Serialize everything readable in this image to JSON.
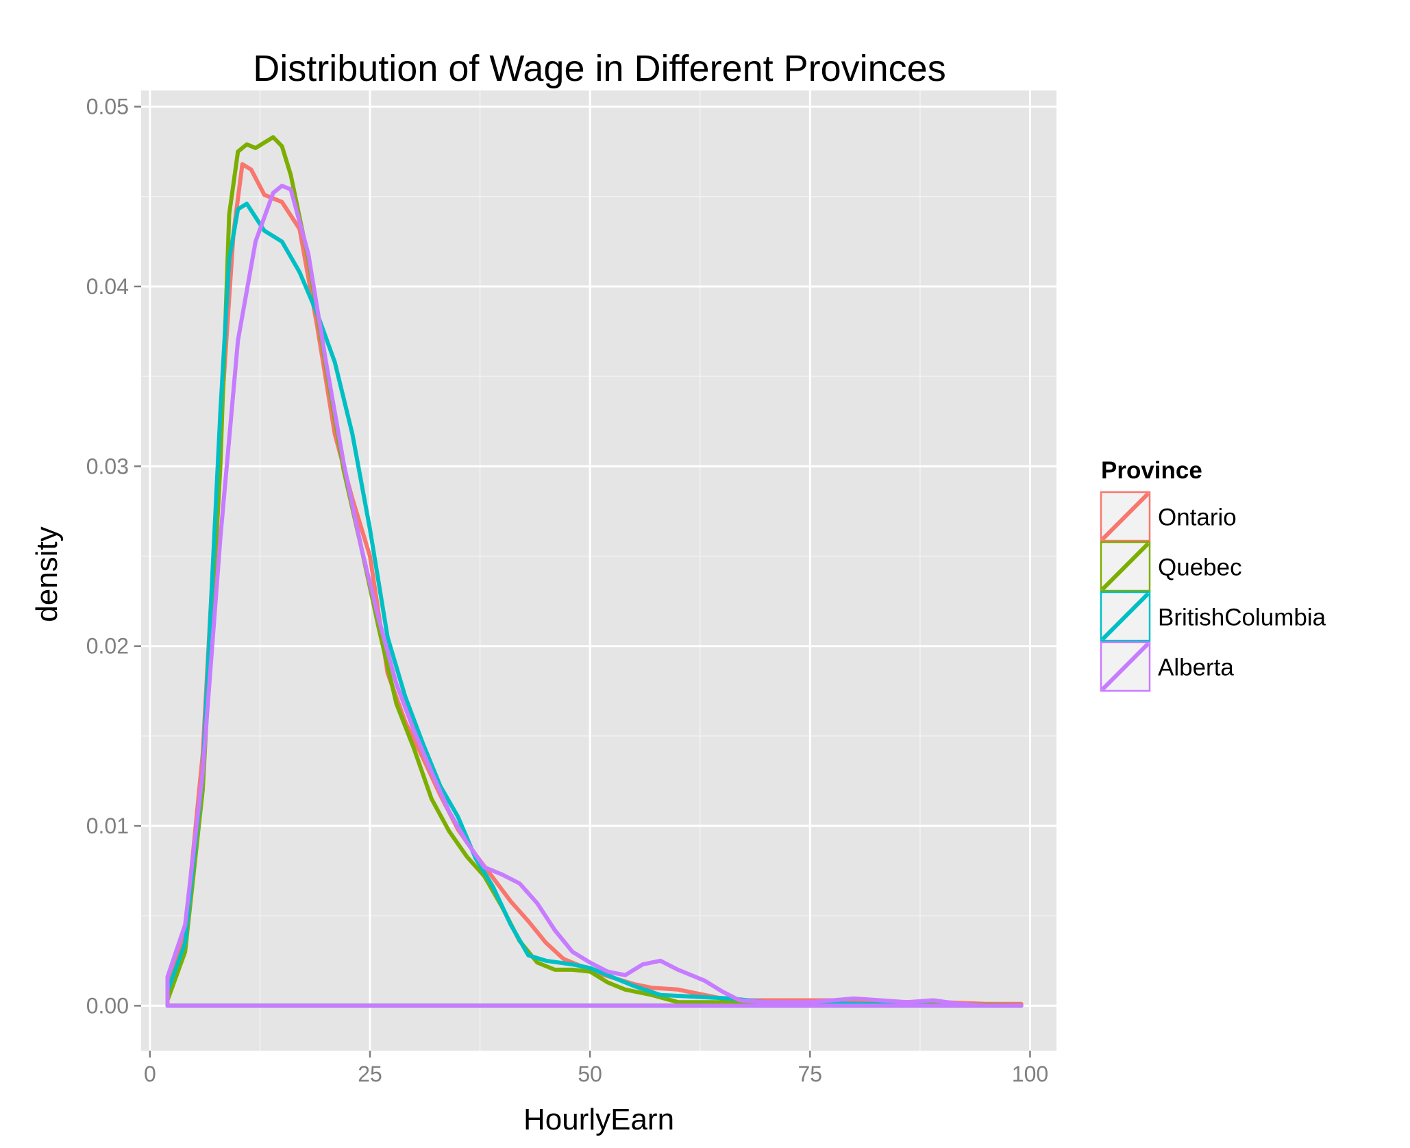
{
  "chart_data": {
    "type": "line",
    "title": "Distribution of Wage in Different Provinces",
    "xlabel": "HourlyEarn",
    "ylabel": "density",
    "xlim": [
      -1,
      103
    ],
    "ylim": [
      -0.0025,
      0.0509
    ],
    "x_ticks": [
      0,
      25,
      50,
      75,
      100
    ],
    "x_tick_labels": [
      "0",
      "25",
      "50",
      "75",
      "100"
    ],
    "y_ticks": [
      0,
      0.01,
      0.02,
      0.03,
      0.04,
      0.05
    ],
    "y_tick_labels": [
      "0.00",
      "0.01",
      "0.02",
      "0.03",
      "0.04",
      "0.05"
    ],
    "grid": true,
    "legend": {
      "title": "Province",
      "position": "right"
    },
    "series": [
      {
        "name": "Ontario",
        "color": "#F8766D",
        "points": [
          [
            2,
            0
          ],
          [
            2,
            0.0012
          ],
          [
            4,
            0.004
          ],
          [
            6,
            0.014
          ],
          [
            8,
            0.032
          ],
          [
            9.5,
            0.043
          ],
          [
            10.5,
            0.0468
          ],
          [
            11.5,
            0.0465
          ],
          [
            13,
            0.0451
          ],
          [
            15,
            0.0447
          ],
          [
            17,
            0.0432
          ],
          [
            19,
            0.0378
          ],
          [
            21,
            0.0318
          ],
          [
            23,
            0.0282
          ],
          [
            25,
            0.025
          ],
          [
            27,
            0.0185
          ],
          [
            29,
            0.0158
          ],
          [
            31,
            0.0138
          ],
          [
            33,
            0.0117
          ],
          [
            35,
            0.0098
          ],
          [
            37,
            0.0084
          ],
          [
            39,
            0.0071
          ],
          [
            41,
            0.0058
          ],
          [
            43,
            0.0047
          ],
          [
            45,
            0.0035
          ],
          [
            47,
            0.0026
          ],
          [
            49,
            0.0022
          ],
          [
            51,
            0.0018
          ],
          [
            53,
            0.0015
          ],
          [
            55,
            0.0012
          ],
          [
            57,
            0.001
          ],
          [
            60,
            0.0009
          ],
          [
            63,
            0.0006
          ],
          [
            66,
            0.0003
          ],
          [
            70,
            0.0003
          ],
          [
            75,
            0.0003
          ],
          [
            80,
            0.0003
          ],
          [
            85,
            0.0002
          ],
          [
            90,
            0.0002
          ],
          [
            95,
            0.0001
          ],
          [
            99,
            0.0001
          ],
          [
            99,
            0
          ],
          [
            2,
            0
          ]
        ]
      },
      {
        "name": "Quebec",
        "color": "#7CAE00",
        "points": [
          [
            2,
            0
          ],
          [
            2,
            0.0003
          ],
          [
            4,
            0.003
          ],
          [
            6,
            0.012
          ],
          [
            8,
            0.03
          ],
          [
            9,
            0.044
          ],
          [
            10,
            0.0475
          ],
          [
            11,
            0.0479
          ],
          [
            12,
            0.0477
          ],
          [
            13,
            0.048
          ],
          [
            14,
            0.0483
          ],
          [
            15,
            0.0478
          ],
          [
            16,
            0.0462
          ],
          [
            18,
            0.0415
          ],
          [
            20,
            0.0355
          ],
          [
            22,
            0.0298
          ],
          [
            24,
            0.0255
          ],
          [
            26,
            0.021
          ],
          [
            28,
            0.0168
          ],
          [
            30,
            0.0143
          ],
          [
            32,
            0.0115
          ],
          [
            34,
            0.0097
          ],
          [
            36,
            0.0083
          ],
          [
            38,
            0.0072
          ],
          [
            40,
            0.0055
          ],
          [
            42,
            0.0036
          ],
          [
            44,
            0.0024
          ],
          [
            46,
            0.002
          ],
          [
            48,
            0.002
          ],
          [
            50,
            0.0019
          ],
          [
            52,
            0.0013
          ],
          [
            54,
            0.0009
          ],
          [
            57,
            0.0006
          ],
          [
            60,
            0.0002
          ],
          [
            65,
            0.0002
          ],
          [
            70,
            0.0002
          ],
          [
            80,
            0.0001
          ],
          [
            90,
            0.0001
          ],
          [
            99,
            0
          ],
          [
            2,
            0
          ]
        ]
      },
      {
        "name": "BritishColumbia",
        "color": "#00BFC4",
        "points": [
          [
            2,
            0
          ],
          [
            2,
            0.0008
          ],
          [
            4,
            0.0035
          ],
          [
            6,
            0.013
          ],
          [
            8,
            0.033
          ],
          [
            9,
            0.0415
          ],
          [
            10,
            0.0443
          ],
          [
            11,
            0.0446
          ],
          [
            13,
            0.0431
          ],
          [
            15,
            0.0425
          ],
          [
            17,
            0.0408
          ],
          [
            19,
            0.0385
          ],
          [
            21,
            0.0358
          ],
          [
            23,
            0.0318
          ],
          [
            25,
            0.0265
          ],
          [
            27,
            0.0205
          ],
          [
            29,
            0.0172
          ],
          [
            31,
            0.0146
          ],
          [
            33,
            0.0122
          ],
          [
            35,
            0.0105
          ],
          [
            37,
            0.0082
          ],
          [
            39,
            0.0066
          ],
          [
            41,
            0.0045
          ],
          [
            43,
            0.0028
          ],
          [
            45,
            0.0025
          ],
          [
            48,
            0.0023
          ],
          [
            50,
            0.0021
          ],
          [
            52,
            0.0017
          ],
          [
            55,
            0.0011
          ],
          [
            58,
            0.0006
          ],
          [
            62,
            0.0005
          ],
          [
            66,
            0.0004
          ],
          [
            70,
            0.0002
          ],
          [
            80,
            0.0001
          ],
          [
            90,
            0
          ],
          [
            99,
            0
          ],
          [
            2,
            0
          ]
        ]
      },
      {
        "name": "Alberta",
        "color": "#C77CFF",
        "points": [
          [
            2,
            0
          ],
          [
            2,
            0.0016
          ],
          [
            4,
            0.0045
          ],
          [
            6,
            0.013
          ],
          [
            8,
            0.026
          ],
          [
            10,
            0.037
          ],
          [
            12,
            0.0425
          ],
          [
            14,
            0.0452
          ],
          [
            15,
            0.0456
          ],
          [
            16,
            0.0454
          ],
          [
            18,
            0.0418
          ],
          [
            20,
            0.0358
          ],
          [
            22,
            0.0302
          ],
          [
            24,
            0.0255
          ],
          [
            26,
            0.0215
          ],
          [
            28,
            0.0179
          ],
          [
            30,
            0.0153
          ],
          [
            32,
            0.013
          ],
          [
            34,
            0.0108
          ],
          [
            36,
            0.0091
          ],
          [
            38,
            0.0077
          ],
          [
            40,
            0.0073
          ],
          [
            42,
            0.0068
          ],
          [
            44,
            0.0057
          ],
          [
            46,
            0.0042
          ],
          [
            48,
            0.003
          ],
          [
            50,
            0.0024
          ],
          [
            52,
            0.0019
          ],
          [
            54,
            0.0017
          ],
          [
            56,
            0.0023
          ],
          [
            58,
            0.0025
          ],
          [
            60,
            0.002
          ],
          [
            63,
            0.0014
          ],
          [
            65,
            0.0008
          ],
          [
            67,
            0.0003
          ],
          [
            70,
            0.0002
          ],
          [
            75,
            0.0002
          ],
          [
            80,
            0.0004
          ],
          [
            83,
            0.0003
          ],
          [
            86,
            0.0002
          ],
          [
            89,
            0.0003
          ],
          [
            92,
            0.0001
          ],
          [
            95,
            0
          ],
          [
            99,
            0
          ],
          [
            2,
            0
          ]
        ]
      }
    ]
  }
}
